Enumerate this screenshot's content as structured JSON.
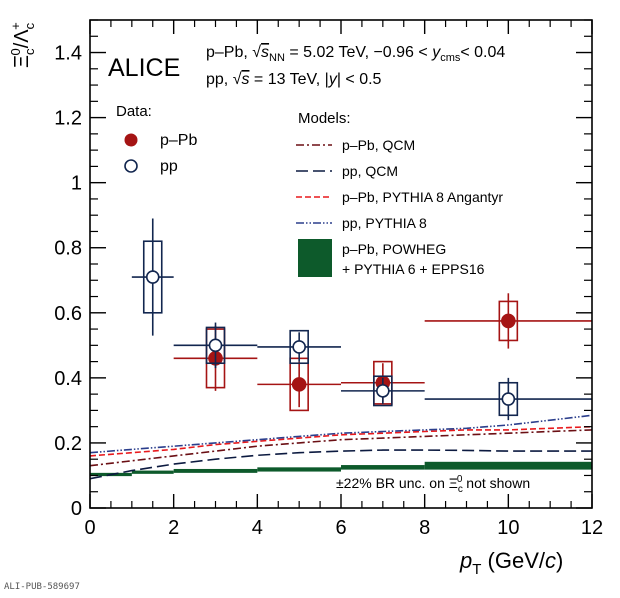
{
  "chart_data": {
    "type": "scatter",
    "experiment": "ALICE",
    "header_lines": [
      "p–Pb, √sNN = 5.02 TeV,  −0.96 < ycms < 0.04",
      "pp, √s = 13 TeV, |y| < 0.5"
    ],
    "xlabel": "pT (GeV/c)",
    "ylabel": "Ξc0/Λc+",
    "xlim": [
      0,
      12
    ],
    "ylim": [
      0,
      1.5
    ],
    "xticks": [
      0,
      2,
      4,
      6,
      8,
      10,
      12
    ],
    "yticks": [
      0,
      0.2,
      0.4,
      0.6,
      0.8,
      1,
      1.2,
      1.4
    ],
    "xtick_labels": [
      "0",
      "2",
      "4",
      "6",
      "8",
      "10",
      "12"
    ],
    "ytick_labels": [
      "0",
      "0.2",
      "0.4",
      "0.6",
      "0.8",
      "1",
      "1.2",
      "1.4"
    ],
    "grid": false,
    "data_legend_title": "Data:",
    "models_legend_title": "Models:",
    "note": "±22% BR unc. on Ξc0 not shown",
    "colors": {
      "ppb": "#a51414",
      "pp": "#12264f",
      "ppb_qcm": "#6b0f14",
      "pp_qcm": "#0c1a40",
      "angantyr": "#e8191c",
      "pythia8": "#2b3e8c",
      "powheg": "#0d5a2b"
    },
    "series": [
      {
        "name": "p–Pb",
        "marker": "filled-circle",
        "points": [
          {
            "x": 3,
            "xlo": 2,
            "xhi": 4,
            "y": 0.46,
            "stat": [
              0.1,
              0.1
            ],
            "sys": [
              0.09,
              0.09
            ]
          },
          {
            "x": 5,
            "xlo": 4,
            "xhi": 6,
            "y": 0.38,
            "stat": [
              0.07,
              0.07
            ],
            "sys": [
              0.08,
              0.08
            ]
          },
          {
            "x": 7,
            "xlo": 6,
            "xhi": 8,
            "y": 0.385,
            "stat": [
              0.06,
              0.06
            ],
            "sys": [
              0.065,
              0.065
            ]
          },
          {
            "x": 10,
            "xlo": 8,
            "xhi": 12,
            "y": 0.575,
            "stat": [
              0.085,
              0.085
            ],
            "sys": [
              0.06,
              0.06
            ]
          }
        ]
      },
      {
        "name": "pp",
        "marker": "open-circle",
        "points": [
          {
            "x": 1.5,
            "xlo": 1,
            "xhi": 2,
            "y": 0.71,
            "stat": [
              0.18,
              0.18
            ],
            "sys": [
              0.11,
              0.11
            ]
          },
          {
            "x": 3,
            "xlo": 2,
            "xhi": 4,
            "y": 0.5,
            "stat": [
              0.07,
              0.07
            ],
            "sys": [
              0.055,
              0.055
            ]
          },
          {
            "x": 5,
            "xlo": 4,
            "xhi": 6,
            "y": 0.495,
            "stat": [
              0.045,
              0.045
            ],
            "sys": [
              0.05,
              0.05
            ]
          },
          {
            "x": 7,
            "xlo": 6,
            "xhi": 8,
            "y": 0.36,
            "stat": [
              0.04,
              0.04
            ],
            "sys": [
              0.045,
              0.045
            ]
          },
          {
            "x": 10,
            "xlo": 8,
            "xhi": 12,
            "y": 0.335,
            "stat": [
              0.065,
              0.065
            ],
            "sys": [
              0.05,
              0.05
            ]
          }
        ]
      }
    ],
    "models": [
      {
        "name": "p–Pb, QCM",
        "style": "dash-dot",
        "x": [
          0,
          1,
          2,
          3,
          4,
          5,
          6,
          7,
          8,
          9,
          10,
          11,
          12
        ],
        "y": [
          0.13,
          0.145,
          0.16,
          0.175,
          0.19,
          0.2,
          0.21,
          0.215,
          0.22,
          0.225,
          0.23,
          0.235,
          0.24
        ]
      },
      {
        "name": "pp, QCM",
        "style": "long-dash",
        "x": [
          0,
          1,
          2,
          3,
          4,
          5,
          6,
          7,
          8,
          9,
          10,
          11,
          12
        ],
        "y": [
          0.09,
          0.115,
          0.135,
          0.15,
          0.162,
          0.17,
          0.175,
          0.178,
          0.178,
          0.177,
          0.175,
          0.175,
          0.175
        ]
      },
      {
        "name": "p–Pb, PYTHIA 8 Angantyr",
        "style": "dashed",
        "x": [
          0,
          1,
          2,
          3,
          4,
          5,
          6,
          7,
          8,
          9,
          10,
          11,
          12
        ],
        "y": [
          0.16,
          0.17,
          0.18,
          0.195,
          0.205,
          0.215,
          0.225,
          0.23,
          0.235,
          0.24,
          0.24,
          0.245,
          0.25
        ]
      },
      {
        "name": "pp, PYTHIA 8",
        "style": "dash-dot-dot",
        "x": [
          0,
          1,
          2,
          3,
          4,
          5,
          6,
          7,
          8,
          9,
          10,
          11,
          12
        ],
        "y": [
          0.17,
          0.18,
          0.19,
          0.2,
          0.21,
          0.22,
          0.23,
          0.235,
          0.24,
          0.245,
          0.255,
          0.27,
          0.285
        ]
      },
      {
        "name": "p–Pb, POWHEG + PYTHIA 6 + EPPS16",
        "style": "band",
        "bins": [
          [
            0,
            1,
            0.098,
            0.108
          ],
          [
            1,
            2,
            0.105,
            0.115
          ],
          [
            2,
            4,
            0.108,
            0.12
          ],
          [
            4,
            6,
            0.112,
            0.125
          ],
          [
            6,
            8,
            0.118,
            0.132
          ],
          [
            8,
            12,
            0.118,
            0.142
          ]
        ]
      }
    ]
  },
  "footer": {
    "pub_id": "ALI-PUB-589697"
  }
}
